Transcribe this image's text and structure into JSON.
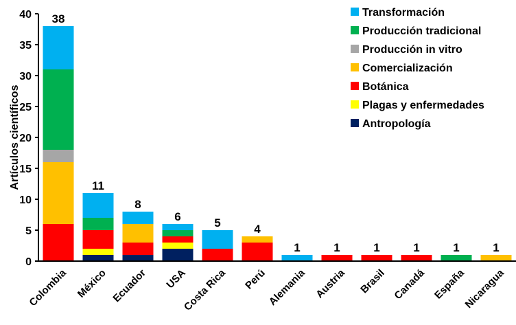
{
  "chart_data": {
    "type": "bar",
    "stacked": true,
    "ylabel": "Artículos científicos",
    "xlabel": "",
    "ylim": [
      0,
      40
    ],
    "yticks": [
      0,
      5,
      10,
      15,
      20,
      25,
      30,
      35,
      40
    ],
    "grid": false,
    "legend_position": "top-right",
    "categories": [
      "Colombia",
      "México",
      "Ecuador",
      "USA",
      "Costa Rica",
      "Perú",
      "Alemania",
      "Austria",
      "Brasil",
      "Canadá",
      "España",
      "Nicaragua"
    ],
    "totals": [
      38,
      11,
      8,
      6,
      5,
      4,
      1,
      1,
      1,
      1,
      1,
      1
    ],
    "series": [
      {
        "name": "Antropología",
        "color": "#002060",
        "values": [
          0,
          1,
          1,
          2,
          0,
          0,
          0,
          0,
          0,
          0,
          0,
          0
        ]
      },
      {
        "name": "Plagas y enfermedades",
        "color": "#FFFF00",
        "values": [
          0,
          1,
          0,
          1,
          0,
          0,
          0,
          0,
          0,
          0,
          0,
          0
        ]
      },
      {
        "name": "Botánica",
        "color": "#FF0000",
        "values": [
          6,
          3,
          2,
          1,
          2,
          3,
          0,
          1,
          1,
          1,
          0,
          0
        ]
      },
      {
        "name": "Comercialización",
        "color": "#FFC000",
        "values": [
          10,
          0,
          3,
          0,
          0,
          1,
          0,
          0,
          0,
          0,
          0,
          1
        ]
      },
      {
        "name": "Producción in vitro",
        "color": "#A6A6A6",
        "values": [
          2,
          0,
          0,
          0,
          0,
          0,
          0,
          0,
          0,
          0,
          0,
          0
        ]
      },
      {
        "name": "Producción tradicional",
        "color": "#00B050",
        "values": [
          13,
          2,
          0,
          1,
          0,
          0,
          0,
          0,
          0,
          0,
          1,
          0
        ]
      },
      {
        "name": "Transformación",
        "color": "#00B0F0",
        "values": [
          7,
          4,
          2,
          1,
          3,
          0,
          1,
          0,
          0,
          0,
          0,
          0
        ]
      }
    ]
  }
}
